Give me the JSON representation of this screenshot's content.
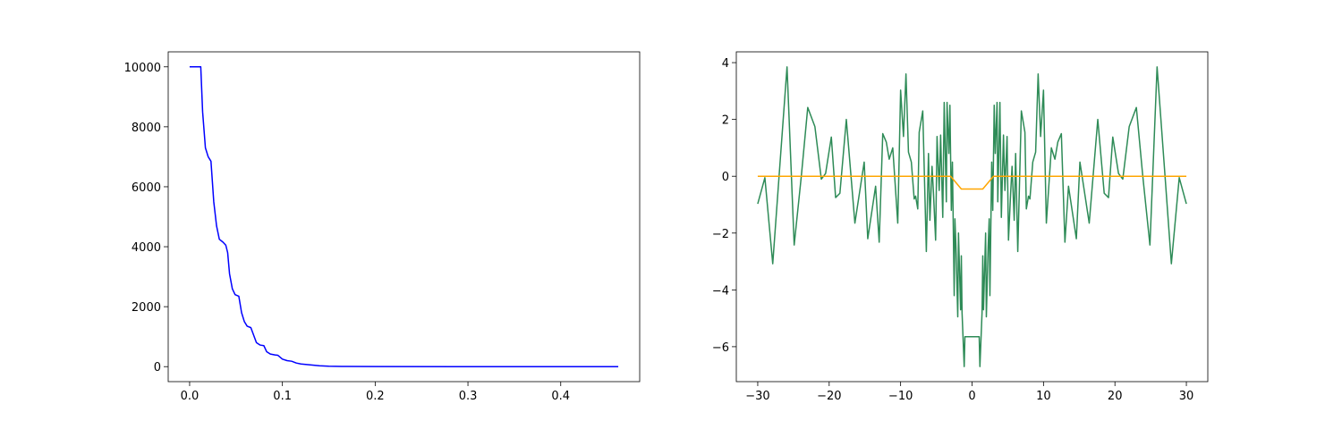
{
  "chart_data": [
    {
      "type": "line",
      "xlim": [
        -0.0231,
        0.4851
      ],
      "ylim": [
        -500,
        10500
      ],
      "xticks": [
        {
          "value": 0,
          "label": "0.0"
        },
        0.1,
        0.2,
        0.3,
        0.4
      ],
      "yticks": [
        0,
        2000,
        4000,
        6000,
        8000,
        10000
      ],
      "series": [
        {
          "color": "#0000ff",
          "x": [
            0,
            0.012,
            0.014,
            0.017,
            0.02,
            0.023,
            0.026,
            0.029,
            0.032,
            0.036,
            0.039,
            0.041,
            0.043,
            0.046,
            0.049,
            0.053,
            0.056,
            0.059,
            0.062,
            0.066,
            0.069,
            0.072,
            0.076,
            0.08,
            0.083,
            0.087,
            0.092,
            0.095,
            0.1,
            0.105,
            0.11,
            0.115,
            0.12,
            0.13,
            0.14,
            0.15,
            0.17,
            0.2,
            0.3,
            0.4,
            0.462
          ],
          "values": [
            10000,
            10000,
            8500,
            7300,
            7000,
            6850,
            5500,
            4700,
            4250,
            4150,
            4050,
            3800,
            3100,
            2600,
            2400,
            2350,
            1800,
            1500,
            1350,
            1300,
            1050,
            800,
            720,
            700,
            500,
            420,
            390,
            380,
            250,
            200,
            180,
            120,
            90,
            60,
            30,
            15,
            5,
            2,
            0,
            0,
            0
          ]
        }
      ]
    },
    {
      "type": "line",
      "xlim": [
        -33,
        33
      ],
      "ylim": [
        -7.23,
        4.38
      ],
      "xticks": [
        {
          "value": -30,
          "label": "−30"
        },
        {
          "value": -20,
          "label": "−20"
        },
        {
          "value": -10,
          "label": "−10"
        },
        0,
        10,
        20,
        30
      ],
      "yticks": [
        {
          "value": -6,
          "label": "−6"
        },
        {
          "value": -4,
          "label": "−4"
        },
        {
          "value": -2,
          "label": "−2"
        },
        0,
        2,
        4
      ],
      "series": [
        {
          "color": "#2e8b57",
          "x": [
            -30,
            -29,
            -27.9,
            -26.9,
            -25.9,
            -24.9,
            -23.9,
            -23,
            -22,
            -21.1,
            -20.5,
            -19.7,
            -19.1,
            -18.5,
            -17.6,
            -16.4,
            -15.1,
            -14.6,
            -13.5,
            -13,
            -12.5,
            -12,
            -11.6,
            -11.1,
            -10.4,
            -10,
            -9.6,
            -9.25,
            -8.9,
            -8.5,
            -8.1,
            -7.9,
            -7.6,
            -7.4,
            -6.9,
            -6.4,
            -6.1,
            -5.9,
            -5.6,
            -5.4,
            -5.1,
            -4.9,
            -4.6,
            -4.4,
            -4.1,
            -3.9,
            -3.6,
            -3.5,
            -3.25,
            -3.1,
            -2.9,
            -2.75,
            -2.5,
            -2.4,
            -2.25,
            -2,
            -1.9,
            -1.6,
            -1.5,
            -1.4,
            -1.1,
            -1,
            0,
            1,
            1.1,
            1.4,
            1.5,
            1.6,
            1.9,
            2,
            2.25,
            2.4,
            2.5,
            2.75,
            2.9,
            3.1,
            3.25,
            3.5,
            3.6,
            3.9,
            4.1,
            4.4,
            4.6,
            4.9,
            5.1,
            5.4,
            5.6,
            5.9,
            6.1,
            6.4,
            6.9,
            7.4,
            7.6,
            7.9,
            8.1,
            8.5,
            8.9,
            9.25,
            9.6,
            10,
            10.4,
            11.1,
            11.6,
            12,
            12.5,
            13,
            13.5,
            14.6,
            15.1,
            16.4,
            17.6,
            18.5,
            19.1,
            19.7,
            20.5,
            21.1,
            22,
            23,
            23.9,
            24.9,
            25.9,
            26.9,
            27.9,
            29,
            30
          ],
          "values": [
            -0.97,
            -0.05,
            -3.08,
            0.4,
            3.85,
            -2.42,
            0,
            2.42,
            1.75,
            -0.1,
            0.1,
            1.38,
            -0.75,
            -0.6,
            2,
            -1.65,
            0.5,
            -2.2,
            -0.35,
            -2.32,
            1.5,
            1.2,
            0.6,
            1,
            -1.65,
            3.03,
            1.4,
            3.6,
            0.85,
            0.5,
            -0.8,
            -0.7,
            -1.15,
            1.55,
            2.3,
            -2.65,
            0.8,
            -1.55,
            0.35,
            -0.6,
            -2.25,
            1.4,
            -0.5,
            1.45,
            -1.45,
            2.6,
            -0.9,
            2.6,
            0.8,
            2.5,
            -1.2,
            0.5,
            -4.2,
            -1.5,
            -2.5,
            -4.95,
            -2,
            -4.7,
            -2.8,
            -4.8,
            -6.7,
            -5.65,
            -5.65,
            -5.65,
            -6.7,
            -4.8,
            -2.8,
            -4.7,
            -2,
            -4.95,
            -2.5,
            -1.5,
            -4.2,
            0.5,
            -1.2,
            2.5,
            0.8,
            2.6,
            -0.9,
            2.6,
            -1.45,
            1.45,
            -0.5,
            1.4,
            -2.25,
            -0.6,
            0.35,
            -1.55,
            0.8,
            -2.65,
            2.3,
            1.55,
            -1.15,
            -0.7,
            -0.8,
            0.5,
            0.85,
            3.6,
            1.4,
            3.03,
            -1.65,
            1,
            0.6,
            1.2,
            1.5,
            -2.32,
            -0.35,
            -2.2,
            0.5,
            -1.65,
            2,
            -0.6,
            -0.75,
            1.38,
            0.1,
            -0.1,
            1.75,
            2.42,
            0,
            -2.42,
            3.85,
            0.4,
            -3.08,
            -0.05,
            -0.97
          ]
        },
        {
          "color": "#ffa500",
          "x": [
            -30,
            -3,
            -2.5,
            -1.5,
            1.5,
            2.5,
            3,
            30
          ],
          "values": [
            0,
            0,
            -0.15,
            -0.45,
            -0.45,
            -0.15,
            0,
            0
          ]
        }
      ]
    }
  ]
}
